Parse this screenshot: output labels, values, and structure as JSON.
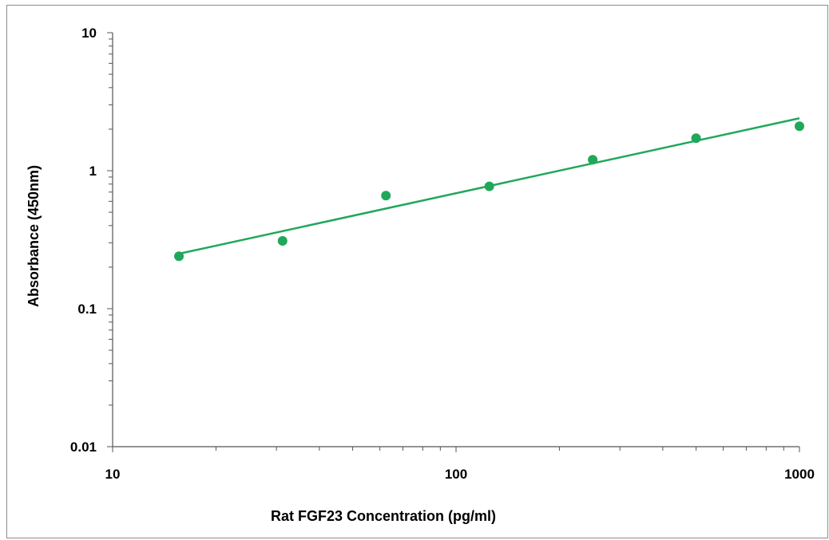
{
  "chart_data": {
    "type": "scatter",
    "title": "",
    "xlabel": "Rat FGF23 Concentration (pg/ml)",
    "ylabel": "Absorbance (450nm)",
    "x_scale": "log",
    "y_scale": "log",
    "xlim": [
      10,
      1000
    ],
    "ylim": [
      0.01,
      10
    ],
    "x_ticks": [
      {
        "value": 10,
        "label": "10"
      },
      {
        "value": 100,
        "label": "100"
      },
      {
        "value": 1000,
        "label": "1000"
      }
    ],
    "y_ticks": [
      {
        "value": 0.01,
        "label": "0.01"
      },
      {
        "value": 0.1,
        "label": "0.1"
      },
      {
        "value": 1,
        "label": "1"
      },
      {
        "value": 10,
        "label": "10"
      }
    ],
    "grid": false,
    "legend": "none",
    "series": [
      {
        "x": [
          15.6,
          31.25,
          62.5,
          125,
          250,
          500,
          1000
        ],
        "y": [
          0.24,
          0.31,
          0.66,
          0.77,
          1.2,
          1.72,
          2.1
        ]
      }
    ],
    "trendline": {
      "x": [
        15.6,
        1000
      ],
      "y": [
        0.25,
        2.4
      ]
    },
    "colors": {
      "series": "#1fa85a",
      "axis": "#555555",
      "frame": "#8c8c8c"
    }
  }
}
